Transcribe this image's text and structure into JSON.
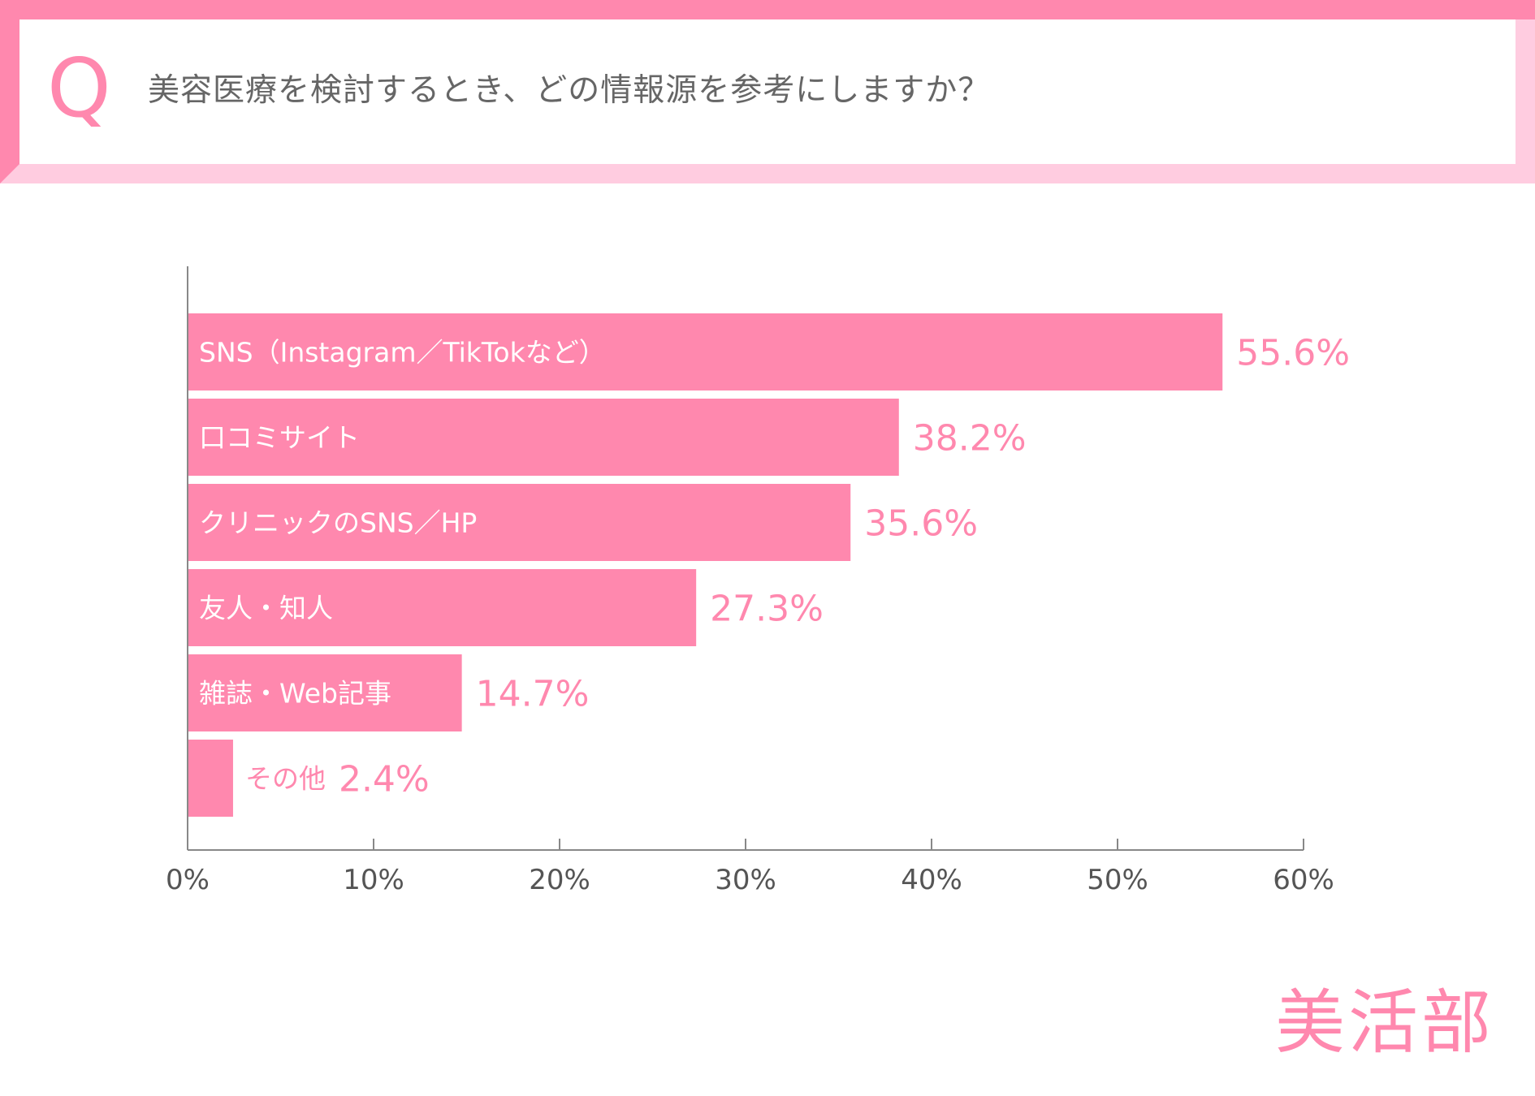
{
  "question": {
    "letter": "Q",
    "text": "美容医療を検討するとき、どの情報源を参考にしますか？"
  },
  "logo": {
    "text": "美活部"
  },
  "colors": {
    "bar": "#ff88ae",
    "accent": "#ff88ae",
    "banner_light": "#ffcce0",
    "axis": "#888888",
    "tick_text": "#555555"
  },
  "chart_data": {
    "type": "bar",
    "orientation": "horizontal",
    "categories": [
      "SNS（Instagram／TikTokなど）",
      "口コミサイト",
      "クリニックのSNS／HP",
      "友人・知人",
      "雑誌・Web記事",
      "その他"
    ],
    "values": [
      55.6,
      38.2,
      35.6,
      27.3,
      14.7,
      2.4
    ],
    "value_labels": [
      "55.6%",
      "38.2%",
      "35.6%",
      "27.3%",
      "14.7%",
      "2.4%"
    ],
    "xlim": [
      0,
      60
    ],
    "ticks": [
      0,
      10,
      20,
      30,
      40,
      50,
      60
    ],
    "tick_labels": [
      "0%",
      "10%",
      "20%",
      "30%",
      "40%",
      "50%",
      "60%"
    ],
    "grid": false,
    "legend": "none"
  }
}
